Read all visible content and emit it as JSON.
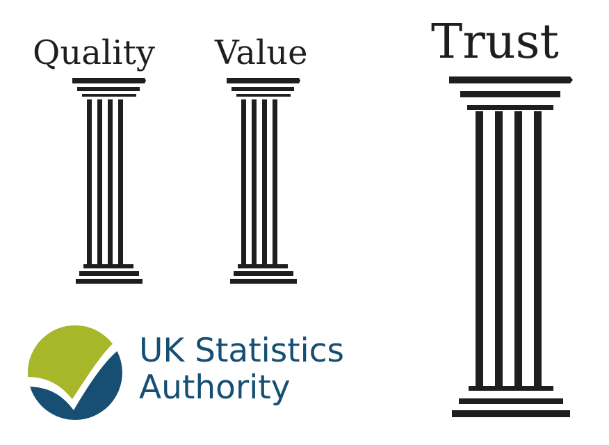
{
  "pillars": [
    {
      "id": "quality",
      "label": "Quality"
    },
    {
      "id": "value",
      "label": "Value"
    },
    {
      "id": "trust",
      "label": "Trust"
    }
  ],
  "logo": {
    "line1": "UK Statistics",
    "line2": "Authority",
    "colors": {
      "text": "#164f72",
      "circle_dark": "#164f72",
      "circle_light": "#a8b62a",
      "check": "#ffffff"
    }
  },
  "colors": {
    "pillar": "#1e1e1e",
    "label": "#1e1e1e",
    "background": "#ffffff"
  }
}
